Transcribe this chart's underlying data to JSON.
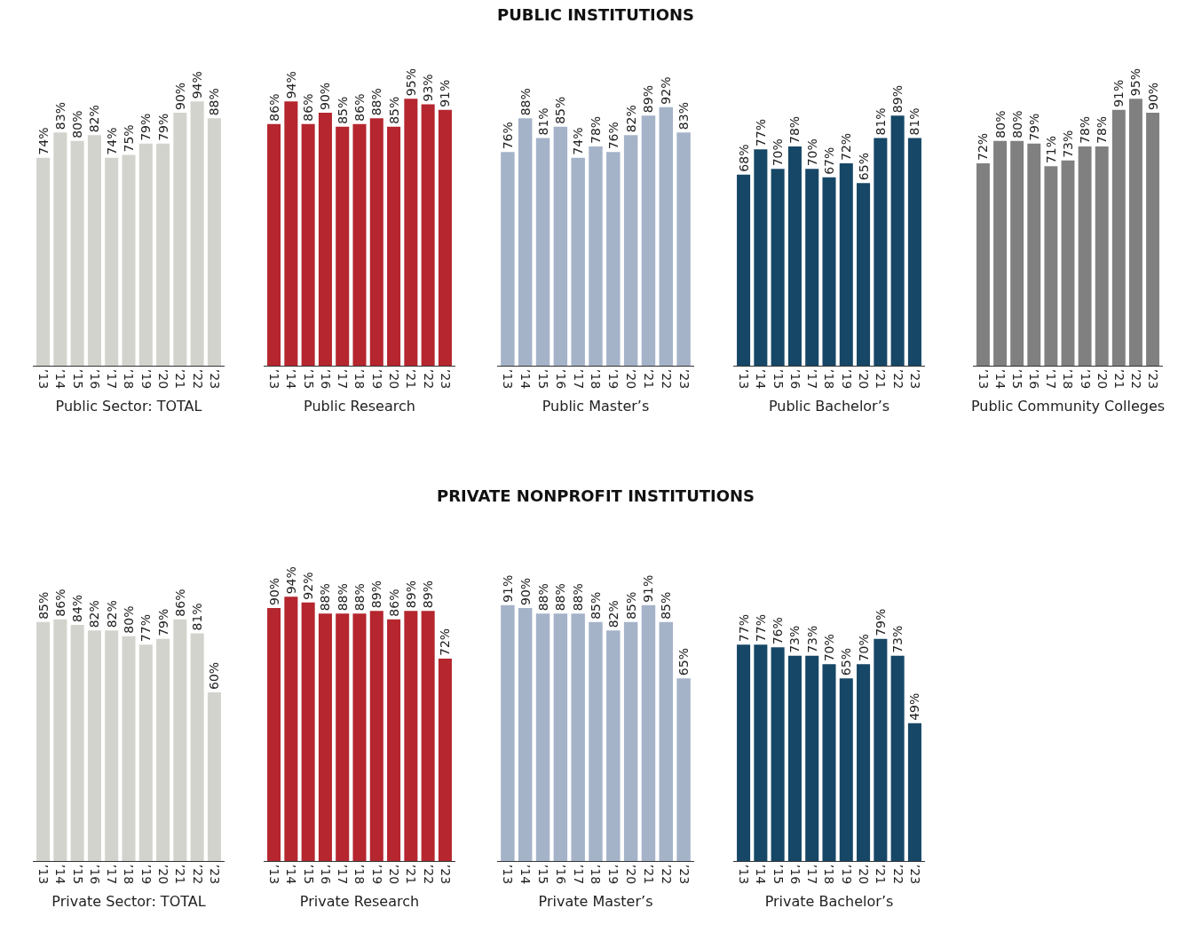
{
  "chart_data": [
    {
      "type": "bar",
      "xlabel": "Public Sector: TOTAL",
      "color": "#d3d3cd",
      "categories": [
        "’13",
        "’14",
        "’15",
        "’16",
        "’17",
        "’18",
        "’19",
        "’20",
        "’21",
        "’22",
        "’23"
      ],
      "values": [
        74,
        83,
        80,
        82,
        74,
        75,
        79,
        79,
        90,
        94,
        88
      ],
      "value_labels": [
        "74%",
        "83%",
        "80%",
        "82%",
        "74%",
        "75%",
        "79%",
        "79%",
        "90%",
        "94%",
        "88%"
      ]
    },
    {
      "type": "bar",
      "xlabel": "Public Research",
      "color": "#b5262f",
      "categories": [
        "’13",
        "’14",
        "’15",
        "’16",
        "’17",
        "’18",
        "’19",
        "’20",
        "’21",
        "’22",
        "’23"
      ],
      "values": [
        86,
        94,
        86,
        90,
        85,
        86,
        88,
        85,
        95,
        93,
        91
      ],
      "value_labels": [
        "86%",
        "94%",
        "86%",
        "90%",
        "85%",
        "86%",
        "88%",
        "85%",
        "95%",
        "93%",
        "91%"
      ]
    },
    {
      "type": "bar",
      "title": "PUBLIC INSTITUTIONS",
      "xlabel": "Public Master’s",
      "color": "#a5b3c9",
      "categories": [
        "’13",
        "’14",
        "’15",
        "’16",
        "’17",
        "’18",
        "’19",
        "’20",
        "’21",
        "’22",
        "’23"
      ],
      "values": [
        76,
        88,
        81,
        85,
        74,
        78,
        76,
        82,
        89,
        92,
        83
      ],
      "value_labels": [
        "76%",
        "88%",
        "81%",
        "85%",
        "74%",
        "78%",
        "76%",
        "82%",
        "89%",
        "92%",
        "83%"
      ]
    },
    {
      "type": "bar",
      "xlabel": "Public Bachelor’s",
      "color": "#164766",
      "categories": [
        "’13",
        "’14",
        "’15",
        "’16",
        "’17",
        "’18",
        "’19",
        "’20",
        "’21",
        "’22",
        "’23"
      ],
      "values": [
        68,
        77,
        70,
        78,
        70,
        67,
        72,
        65,
        81,
        89,
        81
      ],
      "value_labels": [
        "68%",
        "77%",
        "70%",
        "78%",
        "70%",
        "67%",
        "72%",
        "65%",
        "81%",
        "89%",
        "81%"
      ]
    },
    {
      "type": "bar",
      "xlabel": "Public Community Colleges",
      "color": "#808080",
      "categories": [
        "’13",
        "’14",
        "’15",
        "’16",
        "’17",
        "’18",
        "’19",
        "’20",
        "’21",
        "’22",
        "’23"
      ],
      "values": [
        72,
        80,
        80,
        79,
        71,
        73,
        78,
        78,
        91,
        95,
        90
      ],
      "value_labels": [
        "72%",
        "80%",
        "80%",
        "79%",
        "71%",
        "73%",
        "78%",
        "78%",
        "91%",
        "95%",
        "90%"
      ]
    },
    {
      "type": "bar",
      "xlabel": "Private Sector: TOTAL",
      "color": "#d3d3cd",
      "categories": [
        "’13",
        "’14",
        "’15",
        "’16",
        "’17",
        "’18",
        "’19",
        "’20",
        "’21",
        "’22",
        "’23"
      ],
      "values": [
        85,
        86,
        84,
        82,
        82,
        80,
        77,
        79,
        86,
        81,
        60
      ],
      "value_labels": [
        "85%",
        "86%",
        "84%",
        "82%",
        "82%",
        "80%",
        "77%",
        "79%",
        "86%",
        "81%",
        "60%"
      ]
    },
    {
      "type": "bar",
      "xlabel": "Private Research",
      "color": "#b5262f",
      "categories": [
        "’13",
        "’14",
        "’15",
        "’16",
        "’17",
        "’18",
        "’19",
        "’20",
        "’21",
        "’22",
        "’23"
      ],
      "values": [
        90,
        94,
        92,
        88,
        88,
        88,
        89,
        86,
        89,
        89,
        72
      ],
      "value_labels": [
        "90%",
        "94%",
        "92%",
        "88%",
        "88%",
        "88%",
        "89%",
        "86%",
        "89%",
        "89%",
        "72%"
      ]
    },
    {
      "type": "bar",
      "title": "PRIVATE NONPROFIT INSTITUTIONS",
      "xlabel": "Private Master’s",
      "color": "#a5b3c9",
      "categories": [
        "’13",
        "’14",
        "’15",
        "’16",
        "’17",
        "’18",
        "’19",
        "’20",
        "’21",
        "’22",
        "’23"
      ],
      "values": [
        91,
        90,
        88,
        88,
        88,
        85,
        82,
        85,
        91,
        85,
        65
      ],
      "value_labels": [
        "91%",
        "90%",
        "88%",
        "88%",
        "88%",
        "85%",
        "82%",
        "85%",
        "91%",
        "85%",
        "65%"
      ]
    },
    {
      "type": "bar",
      "xlabel": "Private Bachelor’s",
      "color": "#164766",
      "categories": [
        "’13",
        "’14",
        "’15",
        "’16",
        "’17",
        "’18",
        "’19",
        "’20",
        "’21",
        "’22",
        "’23"
      ],
      "values": [
        77,
        77,
        76,
        73,
        73,
        70,
        65,
        70,
        79,
        73,
        49
      ],
      "value_labels": [
        "77%",
        "77%",
        "76%",
        "73%",
        "73%",
        "70%",
        "65%",
        "70%",
        "79%",
        "73%",
        "49%"
      ]
    }
  ]
}
